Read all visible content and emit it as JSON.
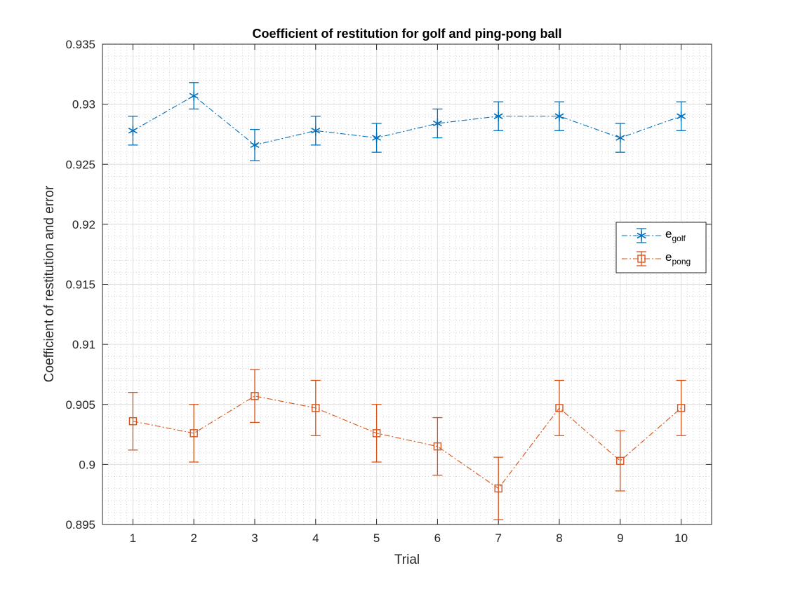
{
  "chart_data": {
    "type": "line",
    "title": "Coefficient of restitution for golf and ping-pong ball",
    "xlabel": "Trial",
    "ylabel": "Coefficient of restitution and error",
    "x": [
      1,
      2,
      3,
      4,
      5,
      6,
      7,
      8,
      9,
      10
    ],
    "xticks": [
      "1",
      "2",
      "3",
      "4",
      "5",
      "6",
      "7",
      "8",
      "9",
      "10"
    ],
    "xlim": [
      0.5,
      10.5
    ],
    "ylim": [
      0.895,
      0.935
    ],
    "yticks": [
      "0.895",
      "0.9",
      "0.905",
      "0.91",
      "0.915",
      "0.92",
      "0.925",
      "0.93",
      "0.935"
    ],
    "grid": true,
    "minor_grid": true,
    "legend_position": "right",
    "series": [
      {
        "name_base": "e",
        "name_sub": "golf",
        "color": "#0072BD",
        "marker": "asterisk",
        "values": [
          0.9278,
          0.9307,
          0.9266,
          0.9278,
          0.9272,
          0.9284,
          0.929,
          0.929,
          0.9272,
          0.929
        ],
        "errors": [
          0.0012,
          0.0011,
          0.0013,
          0.0012,
          0.0012,
          0.0012,
          0.0012,
          0.0012,
          0.0012,
          0.0012
        ]
      },
      {
        "name_base": "e",
        "name_sub": "pong",
        "color": "#D95319",
        "marker": "square",
        "values": [
          0.9036,
          0.9026,
          0.9057,
          0.9047,
          0.9026,
          0.9015,
          0.898,
          0.9047,
          0.9003,
          0.9047
        ],
        "errors": [
          0.0024,
          0.0024,
          0.0022,
          0.0023,
          0.0024,
          0.0024,
          0.0026,
          0.0023,
          0.0025,
          0.0023
        ]
      }
    ]
  }
}
